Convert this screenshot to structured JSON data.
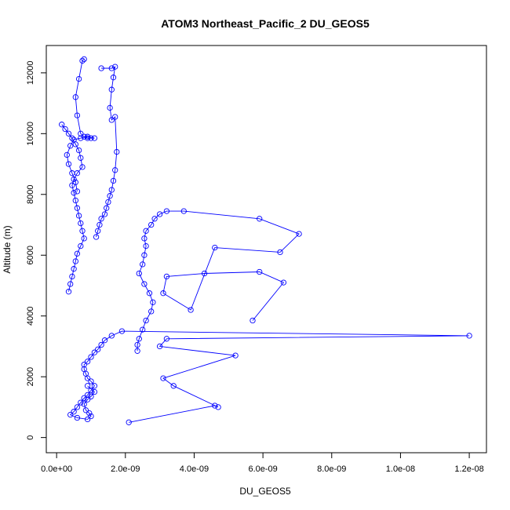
{
  "chart_data": {
    "type": "line",
    "title": "ATOM3 Northeast_Pacific_2 DU_GEOS5",
    "xlabel": "DU_GEOS5",
    "ylabel": "Altitude (m)",
    "xlim": [
      -3e-10,
      1.25e-08
    ],
    "ylim": [
      -500,
      12900
    ],
    "x_ticks": [
      0,
      2e-09,
      4e-09,
      6e-09,
      8e-09,
      1e-08,
      1.2e-08
    ],
    "x_tick_labels": [
      "0.0e+00",
      "2.0e-09",
      "4.0e-09",
      "6.0e-09",
      "8.0e-09",
      "1.0e-08",
      "1.2e-08"
    ],
    "y_ticks": [
      0,
      2000,
      4000,
      6000,
      8000,
      10000,
      12000
    ],
    "y_tick_labels": [
      "0",
      "2000",
      "4000",
      "6000",
      "8000",
      "10000",
      "12000"
    ],
    "grid": false,
    "legend": "none",
    "marker": "open-circle",
    "color": "#0000ff",
    "series": [
      {
        "x": [
          2.1e-09,
          4.6e-09,
          4.7e-09,
          3.4e-09,
          3.1e-09,
          5.2e-09,
          3e-09,
          3.2e-09,
          1.2e-08,
          1.9e-09,
          1.6e-09,
          1.4e-09,
          1.3e-09,
          1.2e-09,
          1.1e-09,
          1e-09,
          9e-10,
          8e-10,
          8e-10,
          8.5e-10,
          9e-10,
          1e-09,
          1.1e-09,
          1e-09,
          9e-10,
          8e-10,
          7e-10,
          6e-10,
          5e-10,
          4e-10,
          6e-10,
          9e-10,
          1e-09,
          9.5e-10,
          8.5e-10,
          8e-10,
          9e-10,
          1e-09,
          1.1e-09,
          9e-10
        ],
        "y": [
          500,
          1050,
          1000,
          1700,
          1950,
          2700,
          3000,
          3250,
          3350,
          3500,
          3350,
          3200,
          3050,
          2900,
          2800,
          2650,
          2500,
          2400,
          2250,
          2100,
          1950,
          1850,
          1700,
          1550,
          1400,
          1300,
          1150,
          1000,
          850,
          750,
          650,
          600,
          700,
          800,
          900,
          1100,
          1250,
          1350,
          1500,
          1700
        ]
      },
      {
        "x": [
          5.7e-09,
          6.6e-09,
          5.9e-09,
          4.3e-09,
          3.2e-09,
          3.1e-09,
          3.9e-09,
          4.6e-09,
          6.5e-09,
          7.05e-09,
          5.9e-09,
          3.7e-09,
          3.2e-09,
          3e-09,
          2.85e-09,
          2.75e-09,
          2.6e-09,
          2.55e-09,
          2.6e-09,
          2.55e-09,
          2.5e-09,
          2.4e-09,
          2.55e-09,
          2.7e-09,
          2.8e-09,
          2.75e-09,
          2.6e-09,
          2.5e-09,
          2.4e-09,
          2.35e-09,
          2.35e-09
        ],
        "y": [
          3850,
          5100,
          5450,
          5400,
          5300,
          4750,
          4200,
          6250,
          6100,
          6700,
          7200,
          7450,
          7450,
          7350,
          7200,
          7000,
          6800,
          6550,
          6300,
          6000,
          5700,
          5400,
          5050,
          4750,
          4450,
          4150,
          3850,
          3550,
          3250,
          3050,
          2850
        ]
      },
      {
        "x": [
          1.3e-09,
          1.6e-09,
          1.7e-09,
          1.65e-09,
          1.6e-09,
          1.55e-09,
          1.6e-09,
          1.7e-09,
          1.75e-09,
          1.7e-09,
          1.65e-09,
          1.6e-09,
          1.55e-09,
          1.5e-09,
          1.45e-09,
          1.4e-09,
          1.3e-09,
          1.25e-09,
          1.2e-09,
          1.15e-09
        ],
        "y": [
          12150,
          12150,
          12200,
          11850,
          11450,
          10850,
          10450,
          10550,
          9400,
          8800,
          8450,
          8150,
          7950,
          7750,
          7550,
          7350,
          7200,
          7000,
          6800,
          6600
        ]
      },
      {
        "x": [
          1.5e-10,
          2.5e-10,
          3.5e-10,
          4.5e-10,
          5.5e-10,
          6.5e-10,
          7e-10,
          7.5e-10,
          6e-10,
          5e-10,
          4.5e-10,
          5e-10,
          5.5e-10,
          6e-10,
          6.5e-10,
          7e-10,
          7.5e-10,
          8e-10,
          7e-10,
          6e-10,
          5.5e-10,
          5e-10,
          4.5e-10,
          4e-10,
          3.5e-10
        ],
        "y": [
          10300,
          10150,
          10000,
          9850,
          9650,
          9450,
          9200,
          8900,
          8700,
          8500,
          8300,
          8050,
          7800,
          7550,
          7300,
          7050,
          6800,
          6550,
          6300,
          6050,
          5800,
          5550,
          5300,
          5050,
          4800
        ]
      },
      {
        "x": [
          8e-10,
          7.5e-10,
          6.5e-10,
          5.5e-10,
          6e-10,
          7e-10,
          8e-10,
          9e-10,
          1e-09,
          1.1e-09,
          9e-10,
          7e-10,
          5e-10,
          4e-10,
          3e-10,
          3.5e-10,
          4.5e-10,
          5.5e-10,
          6e-10
        ],
        "y": [
          12450,
          12400,
          11800,
          11200,
          10600,
          10000,
          9900,
          9850,
          9850,
          9850,
          9900,
          9850,
          9800,
          9600,
          9300,
          9000,
          8700,
          8400,
          8100
        ]
      }
    ]
  }
}
